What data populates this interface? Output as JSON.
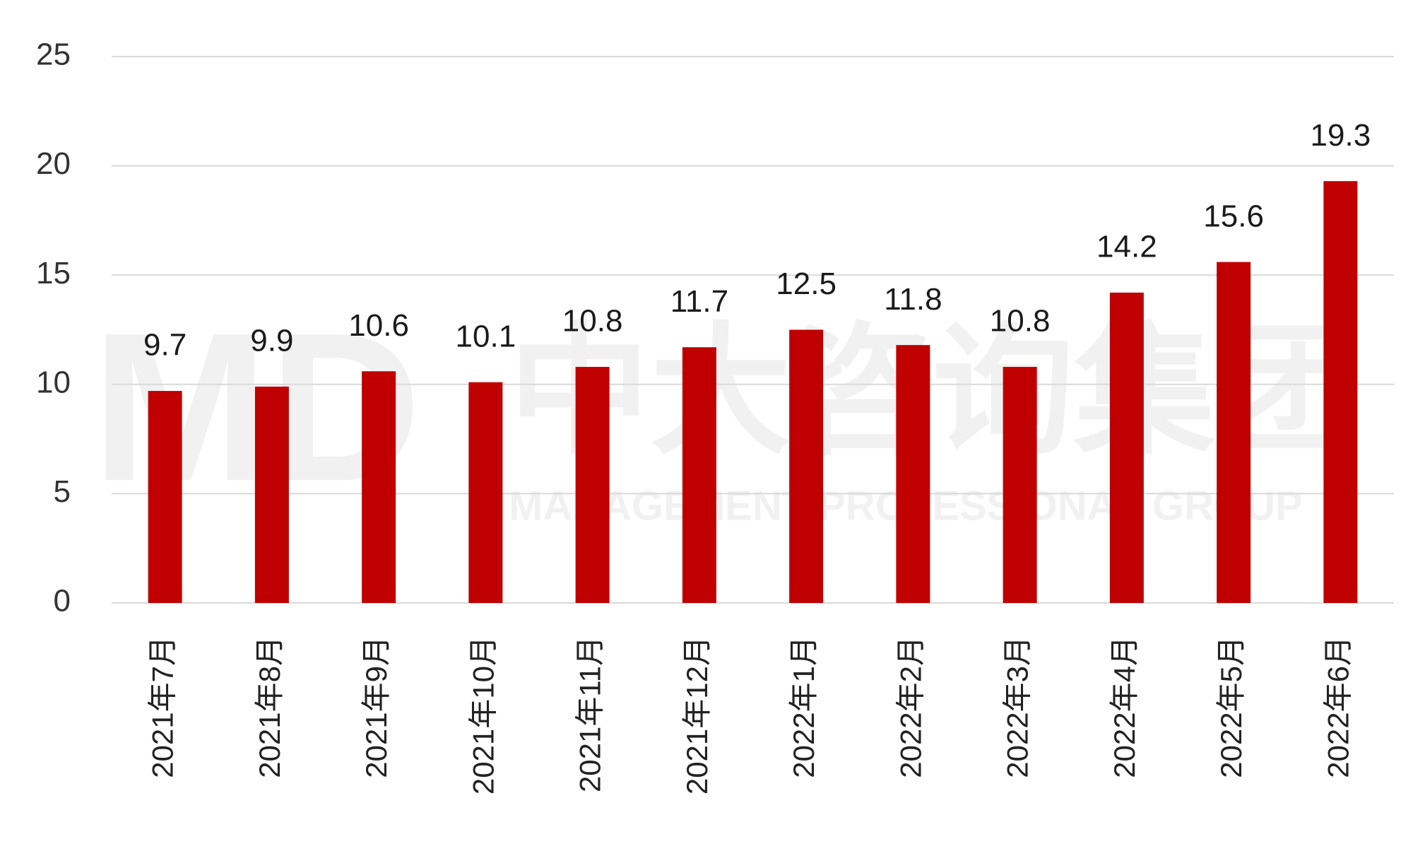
{
  "chart_data": {
    "type": "bar",
    "categories": [
      "2021年7月",
      "2021年8月",
      "2021年9月",
      "2021年10月",
      "2021年11月",
      "2021年12月",
      "2022年1月",
      "2022年2月",
      "2022年3月",
      "2022年4月",
      "2022年5月",
      "2022年6月"
    ],
    "values": [
      9.7,
      9.9,
      10.6,
      10.1,
      10.8,
      11.7,
      12.5,
      11.8,
      10.8,
      14.2,
      15.6,
      19.3
    ],
    "color": "#c00000",
    "ylim": [
      0,
      25
    ],
    "yticks": [
      0,
      5,
      10,
      15,
      20,
      25
    ],
    "grid": true,
    "watermark": {
      "logo": "MD",
      "name": "中大咨询集团",
      "subtitle": "MANAGEMENT PROFESSIONAL GROUP"
    }
  }
}
